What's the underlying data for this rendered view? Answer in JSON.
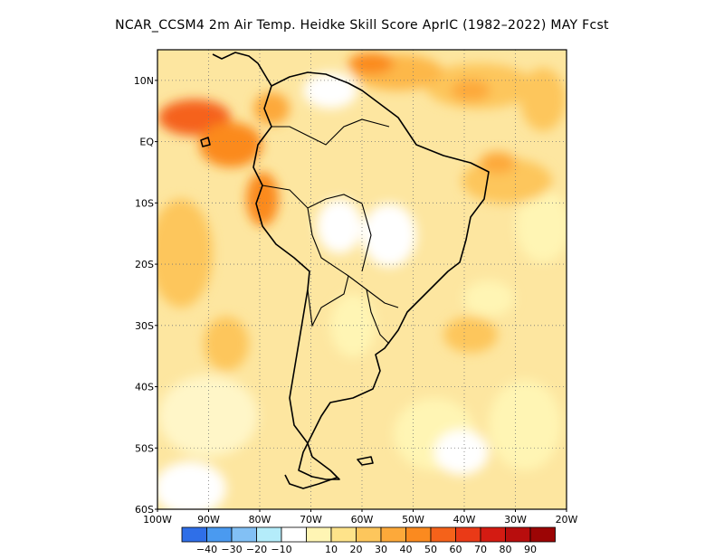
{
  "title": "NCAR_CCSM4  2m Air Temp. Heidke Skill Score AprIC (1982–2022) MAY Fcst",
  "map": {
    "lon_range": [
      -100,
      -20
    ],
    "lat_range": [
      -60,
      15
    ],
    "lat_ticks": [
      {
        "value": 10,
        "label": "10N"
      },
      {
        "value": 0,
        "label": "EQ"
      },
      {
        "value": -10,
        "label": "10S"
      },
      {
        "value": -20,
        "label": "20S"
      },
      {
        "value": -30,
        "label": "30S"
      },
      {
        "value": -40,
        "label": "40S"
      },
      {
        "value": -50,
        "label": "50S"
      },
      {
        "value": -60,
        "label": "60S"
      }
    ],
    "lon_ticks": [
      {
        "value": -100,
        "label": "100W"
      },
      {
        "value": -90,
        "label": "90W"
      },
      {
        "value": -80,
        "label": "80W"
      },
      {
        "value": -70,
        "label": "70W"
      },
      {
        "value": -60,
        "label": "60W"
      },
      {
        "value": -50,
        "label": "50W"
      },
      {
        "value": -40,
        "label": "40W"
      },
      {
        "value": -30,
        "label": "30W"
      },
      {
        "value": -20,
        "label": "20W"
      }
    ],
    "gridlines": "dotted",
    "continent": "South America",
    "dominant_field": "positive skill 10–50 over most of the domain, peaks 60–70 near 5N 95W–85W"
  },
  "colorbar": {
    "colors": [
      "#2f6fe8",
      "#4a9af0",
      "#82c0f5",
      "#b4ecfa",
      "#ffffff",
      "#fff5b4",
      "#fee38a",
      "#fdc65c",
      "#fda93a",
      "#fb8a1f",
      "#f5621a",
      "#ea3a17",
      "#d41b12",
      "#b80d0d",
      "#9c0505"
    ],
    "labels": [
      "−40",
      "−30",
      "−20",
      "−10",
      "10",
      "20",
      "30",
      "40",
      "50",
      "60",
      "70",
      "80",
      "90"
    ]
  }
}
